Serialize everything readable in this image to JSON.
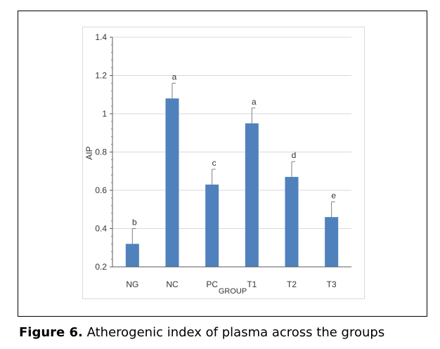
{
  "chart_data": {
    "type": "bar",
    "categories": [
      "NG",
      "NC",
      "PC",
      "T1",
      "T2",
      "T3"
    ],
    "values": [
      0.32,
      1.08,
      0.63,
      0.95,
      0.67,
      0.46
    ],
    "errors": [
      0.08,
      0.08,
      0.08,
      0.08,
      0.08,
      0.08
    ],
    "significance_letters": [
      "b",
      "a",
      "c",
      "a",
      "d",
      "e"
    ],
    "xlabel": "GROUP",
    "ylabel": "AIP",
    "ylim": [
      0.2,
      1.4
    ],
    "yticks": [
      0.2,
      0.4,
      0.6,
      0.8,
      1,
      1.2,
      1.4
    ],
    "ytick_labels": [
      "0.2",
      "0.4",
      "0.6",
      "0.8",
      "1",
      "1.2",
      "1.4"
    ],
    "grid": true,
    "bar_color": "#4f81bd"
  },
  "caption": {
    "label": "Figure 6.",
    "text": " Atherogenic index of plasma across the groups"
  }
}
